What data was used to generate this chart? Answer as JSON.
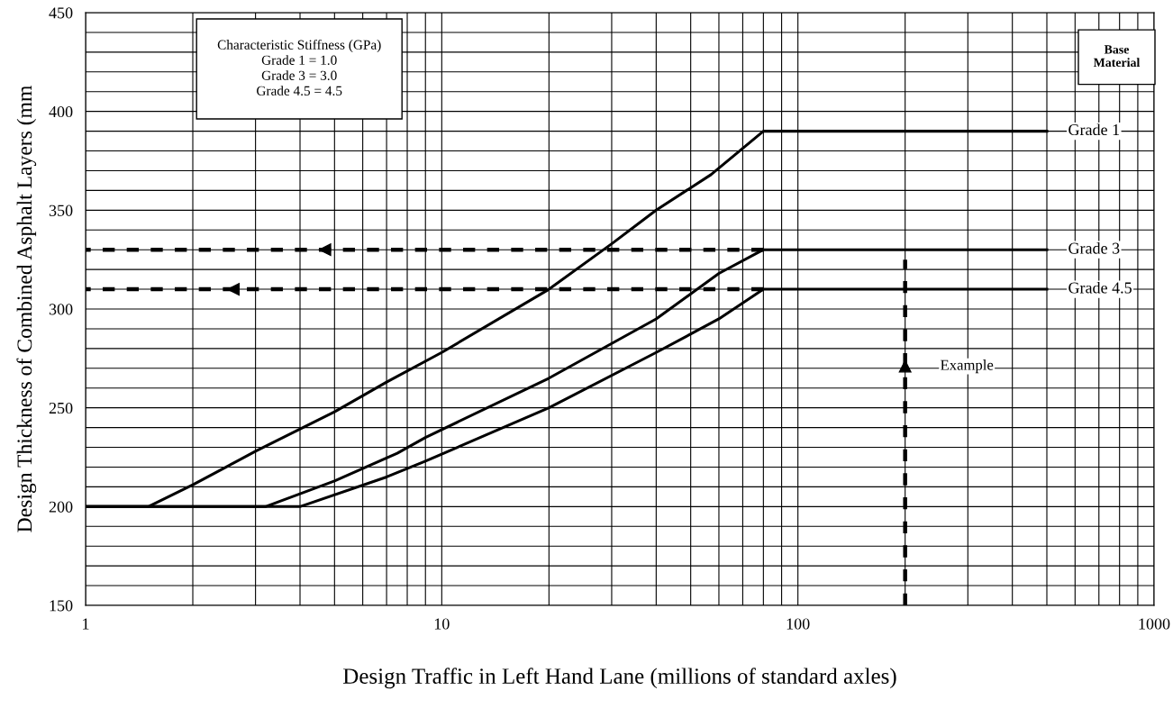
{
  "chart_data": {
    "type": "line",
    "xlabel": "Design Traffic in Left Hand Lane (millions of standard axles)",
    "ylabel": "Design Thickness of Combined Asphalt Layers (mm",
    "log": "x",
    "grid": true,
    "marker": "none",
    "line_style": "solid",
    "xlim": [
      1,
      1000
    ],
    "xticks": [
      1,
      {
        "value": 2,
        "label": null
      },
      {
        "value": 3,
        "label": null
      },
      {
        "value": 4,
        "label": null
      },
      {
        "value": 5,
        "label": null
      },
      {
        "value": 6,
        "label": null
      },
      {
        "value": 7,
        "label": null
      },
      {
        "value": 8,
        "label": null
      },
      {
        "value": 9,
        "label": null
      },
      10,
      {
        "value": 20,
        "label": null
      },
      {
        "value": 30,
        "label": null
      },
      {
        "value": 40,
        "label": null
      },
      {
        "value": 50,
        "label": null
      },
      {
        "value": 60,
        "label": null
      },
      {
        "value": 70,
        "label": null
      },
      {
        "value": 80,
        "label": null
      },
      {
        "value": 90,
        "label": null
      },
      100,
      {
        "value": 200,
        "label": null
      },
      {
        "value": 300,
        "label": null
      },
      {
        "value": 400,
        "label": null
      },
      {
        "value": 500,
        "label": null
      },
      {
        "value": 600,
        "label": null
      },
      {
        "value": 700,
        "label": null
      },
      {
        "value": 800,
        "label": null
      },
      {
        "value": 900,
        "label": null
      },
      1000
    ],
    "ylim": [
      150,
      450
    ],
    "yticks": [
      150,
      {
        "value": 160,
        "label": null
      },
      {
        "value": 170,
        "label": null
      },
      {
        "value": 180,
        "label": null
      },
      {
        "value": 190,
        "label": null
      },
      200,
      {
        "value": 210,
        "label": null
      },
      {
        "value": 220,
        "label": null
      },
      {
        "value": 230,
        "label": null
      },
      {
        "value": 240,
        "label": null
      },
      250,
      {
        "value": 260,
        "label": null
      },
      {
        "value": 270,
        "label": null
      },
      {
        "value": 280,
        "label": null
      },
      {
        "value": 290,
        "label": null
      },
      300,
      {
        "value": 310,
        "label": null
      },
      {
        "value": 320,
        "label": null
      },
      {
        "value": 330,
        "label": null
      },
      {
        "value": 340,
        "label": null
      },
      350,
      {
        "value": 360,
        "label": null
      },
      {
        "value": 370,
        "label": null
      },
      {
        "value": 380,
        "label": null
      },
      {
        "value": 390,
        "label": null
      },
      400,
      {
        "value": 410,
        "label": null
      },
      {
        "value": 420,
        "label": null
      },
      {
        "value": 430,
        "label": null
      },
      {
        "value": 440,
        "label": null
      },
      450
    ],
    "series": [
      {
        "name": "Grade 1",
        "color": "#000000",
        "x": [
          1,
          1.5,
          2,
          3,
          5,
          7,
          10,
          20,
          30,
          40,
          57,
          80,
          500
        ],
        "values": [
          200,
          200,
          211,
          228,
          248,
          263,
          278,
          310,
          333,
          350,
          368,
          390,
          390
        ]
      },
      {
        "name": "Grade 3",
        "color": "#000000",
        "x": [
          1,
          3.2,
          5,
          7.5,
          9,
          20,
          40,
          60,
          80,
          500
        ],
        "values": [
          200,
          200,
          213,
          227,
          235,
          265,
          295,
          318,
          330,
          330
        ]
      },
      {
        "name": "Grade 4.5",
        "color": "#000000",
        "x": [
          1,
          4,
          7,
          9,
          20,
          40,
          60,
          80,
          500
        ],
        "values": [
          200,
          200,
          215,
          223,
          250,
          278,
          295,
          310,
          310
        ]
      },
      {
        "color": "#000000",
        "line_style": "dashed",
        "x": [
          80,
          4.7,
          1
        ],
        "values": [
          330,
          330,
          330
        ]
      },
      {
        "color": "#000000",
        "line_style": "dashed",
        "x": [
          80,
          2.6,
          1
        ],
        "values": [
          310,
          310,
          310
        ]
      },
      {
        "color": "#000000",
        "line_style": "dashed",
        "x": [
          200,
          200,
          200
        ],
        "values": [
          150,
          271,
          325
        ]
      }
    ],
    "annotations": [
      "Characteristic Stiffness (GPa)\nGrade 1 = 1.0\nGrade 3 = 3.0\nGrade 4.5 = 4.5",
      "Base\nMaterial",
      {
        "text": "Example",
        "x": 200,
        "y": 271
      }
    ]
  }
}
